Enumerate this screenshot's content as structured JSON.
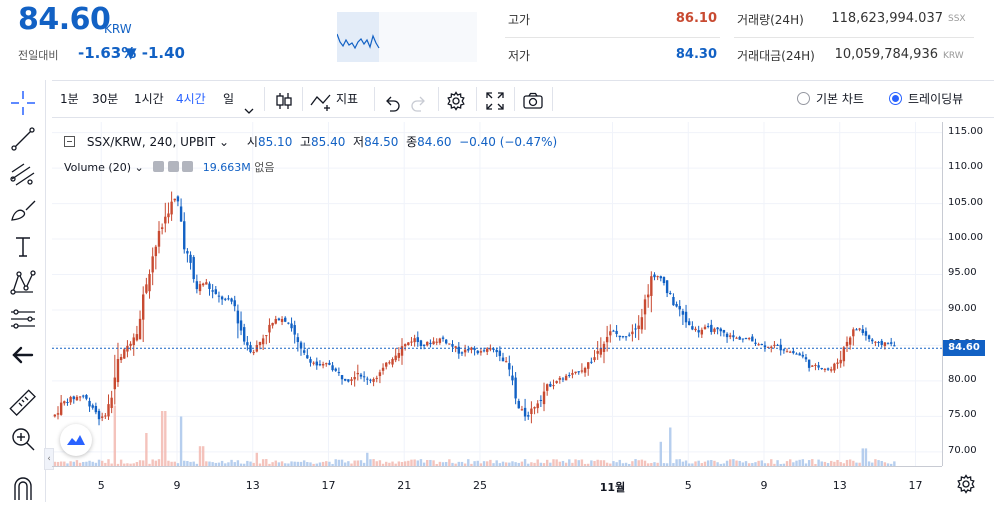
{
  "ticker": {
    "price": "84.60",
    "unit": "KRW",
    "change_label": "전일대비",
    "change_rate": "-1.63%",
    "change_price": "▼ -1.40",
    "high_label": "고가",
    "high_value": "86.10",
    "low_label": "저가",
    "low_value": "84.30",
    "volume_label": "거래량(24H)",
    "volume_value": "118,623,994.037",
    "volume_unit": "SSX",
    "turnover_label": "거래대금(24H)",
    "turnover_value": "10,059,784,936",
    "turnover_unit": "KRW",
    "colors": {
      "down": "#1261c4",
      "up": "#c84a31"
    }
  },
  "toolbar": {
    "intervals": [
      "1분",
      "30분",
      "1시간",
      "4시간",
      "일"
    ],
    "active_interval": "4시간",
    "indicator_label": "지표",
    "chart_modes": [
      "기본 차트",
      "트레이딩뷰"
    ],
    "active_mode": "트레이딩뷰",
    "icons": [
      "interval-dropdown-icon",
      "candle-type-icon",
      "indicator-icon",
      "undo-icon",
      "redo-icon",
      "settings-icon",
      "fullscreen-icon",
      "camera-icon"
    ]
  },
  "drawing_tools": [
    "crosshair-icon",
    "trend-line-icon",
    "fib-tool-icon",
    "brush-icon",
    "text-icon",
    "pattern-icon",
    "measure-icon",
    "back-arrow-icon",
    "ruler-icon",
    "zoom-icon",
    "magnet-icon"
  ],
  "legend": {
    "symbol": "SSX/KRW, 240, UPBIT",
    "open_label": "시",
    "open": "85.10",
    "high_label": "고",
    "high": "85.40",
    "low_label": "저",
    "low": "84.50",
    "close_label": "종",
    "close": "84.60",
    "change": "−0.40 (−0.47%)",
    "volume_name": "Volume (20)",
    "volume_value": "19.663M",
    "volume_extra": "없음"
  },
  "chart_data": {
    "type": "candlestick",
    "y_ticks": [
      "115.00",
      "110.00",
      "105.00",
      "100.00",
      "95.00",
      "90.00",
      "85.00",
      "80.00",
      "75.00",
      "70.00"
    ],
    "ylim": [
      68.0,
      116.5
    ],
    "last_price": "84.60",
    "x_ticks": [
      "5",
      "9",
      "13",
      "17",
      "21",
      "25",
      "11월",
      "5",
      "9",
      "13",
      "17"
    ],
    "x_tick_days": [
      5,
      9,
      13,
      17,
      21,
      25,
      32,
      36,
      40,
      44,
      48
    ],
    "day_range": [
      2.4,
      49.4
    ],
    "close_path": [
      [
        2.5,
        75.0
      ],
      [
        3.0,
        77.0
      ],
      [
        3.5,
        77.5
      ],
      [
        4.0,
        78.0
      ],
      [
        4.5,
        76.5
      ],
      [
        5.0,
        74.5
      ],
      [
        5.5,
        77.0
      ],
      [
        5.8,
        82.0
      ],
      [
        6.2,
        84.0
      ],
      [
        6.6,
        86.0
      ],
      [
        7.0,
        88.0
      ],
      [
        7.5,
        96.0
      ],
      [
        8.0,
        100.0
      ],
      [
        8.5,
        104.0
      ],
      [
        9.0,
        106.0
      ],
      [
        9.3,
        101.0
      ],
      [
        9.6,
        97.0
      ],
      [
        10.0,
        93.0
      ],
      [
        10.5,
        94.0
      ],
      [
        11.0,
        92.0
      ],
      [
        11.5,
        91.5
      ],
      [
        12.0,
        91.0
      ],
      [
        12.5,
        86.0
      ],
      [
        13.0,
        84.0
      ],
      [
        13.5,
        86.0
      ],
      [
        14.0,
        88.0
      ],
      [
        14.5,
        89.0
      ],
      [
        15.0,
        88.0
      ],
      [
        15.5,
        84.0
      ],
      [
        16.0,
        83.0
      ],
      [
        16.5,
        82.0
      ],
      [
        17.0,
        82.5
      ],
      [
        17.5,
        81.0
      ],
      [
        18.0,
        80.0
      ],
      [
        18.5,
        81.5
      ],
      [
        19.0,
        80.0
      ],
      [
        19.5,
        80.5
      ],
      [
        20.0,
        82.0
      ],
      [
        20.5,
        84.0
      ],
      [
        21.0,
        85.0
      ],
      [
        21.5,
        86.0
      ],
      [
        22.0,
        85.0
      ],
      [
        22.5,
        85.5
      ],
      [
        23.0,
        86.0
      ],
      [
        23.5,
        85.0
      ],
      [
        24.0,
        84.0
      ],
      [
        24.5,
        84.5
      ],
      [
        25.0,
        84.0
      ],
      [
        25.5,
        84.5
      ],
      [
        26.0,
        84.0
      ],
      [
        26.5,
        82.0
      ],
      [
        27.0,
        76.0
      ],
      [
        27.5,
        75.0
      ],
      [
        28.0,
        77.0
      ],
      [
        28.5,
        79.0
      ],
      [
        29.0,
        80.0
      ],
      [
        29.5,
        80.5
      ],
      [
        30.0,
        81.0
      ],
      [
        30.5,
        82.0
      ],
      [
        31.0,
        83.0
      ],
      [
        31.5,
        86.0
      ],
      [
        32.0,
        87.0
      ],
      [
        32.5,
        86.0
      ],
      [
        33.0,
        87.0
      ],
      [
        33.5,
        89.0
      ],
      [
        34.0,
        94.0
      ],
      [
        34.5,
        95.0
      ],
      [
        35.0,
        92.0
      ],
      [
        35.5,
        90.0
      ],
      [
        36.0,
        88.0
      ],
      [
        36.5,
        87.0
      ],
      [
        37.0,
        87.5
      ],
      [
        37.5,
        87.0
      ],
      [
        38.0,
        86.5
      ],
      [
        38.5,
        86.0
      ],
      [
        39.0,
        86.0
      ],
      [
        39.5,
        85.5
      ],
      [
        40.0,
        85.0
      ],
      [
        40.5,
        85.0
      ],
      [
        41.0,
        84.5
      ],
      [
        41.5,
        84.0
      ],
      [
        42.0,
        83.5
      ],
      [
        42.5,
        82.0
      ],
      [
        43.0,
        82.0
      ],
      [
        43.5,
        81.5
      ],
      [
        44.0,
        83.0
      ],
      [
        44.5,
        86.5
      ],
      [
        45.0,
        87.5
      ],
      [
        45.5,
        86.0
      ],
      [
        46.0,
        85.0
      ],
      [
        46.5,
        85.5
      ],
      [
        47.0,
        84.6
      ]
    ],
    "volume_spikes": [
      [
        5.7,
        0.55
      ],
      [
        7.4,
        0.3
      ],
      [
        8.3,
        0.5
      ],
      [
        9.2,
        0.45
      ],
      [
        10.3,
        0.18
      ],
      [
        13.2,
        0.12
      ],
      [
        19.0,
        0.12
      ],
      [
        35.0,
        0.35
      ],
      [
        34.5,
        0.22
      ],
      [
        45.3,
        0.16
      ]
    ]
  }
}
